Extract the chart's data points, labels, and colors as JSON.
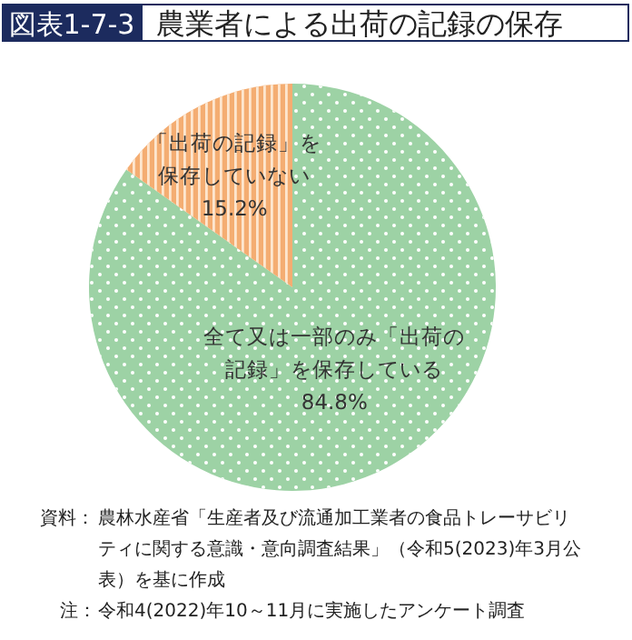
{
  "chart_data": {
    "type": "pie",
    "subtitle": "図表1-7-3",
    "title": "農業者による出荷の記録の保存",
    "categories": [
      "全て又は一部のみ「出荷の記録」を保存している",
      "「出荷の記録」を保存していない"
    ],
    "values": [
      84.8,
      15.2
    ],
    "colors": [
      "#9dd2a5",
      "#f4ad72"
    ],
    "value_labels": [
      "84.8%",
      "15.2%"
    ],
    "annotations": [
      "資料：農林水産省「生産者及び流通加工業者の食品トレーサビリティに関する意識・意向調査結果」（令和5(2023)年3月公表）を基に作成",
      "注：令和4(2022)年10～11月に実施したアンケート調査"
    ]
  }
}
